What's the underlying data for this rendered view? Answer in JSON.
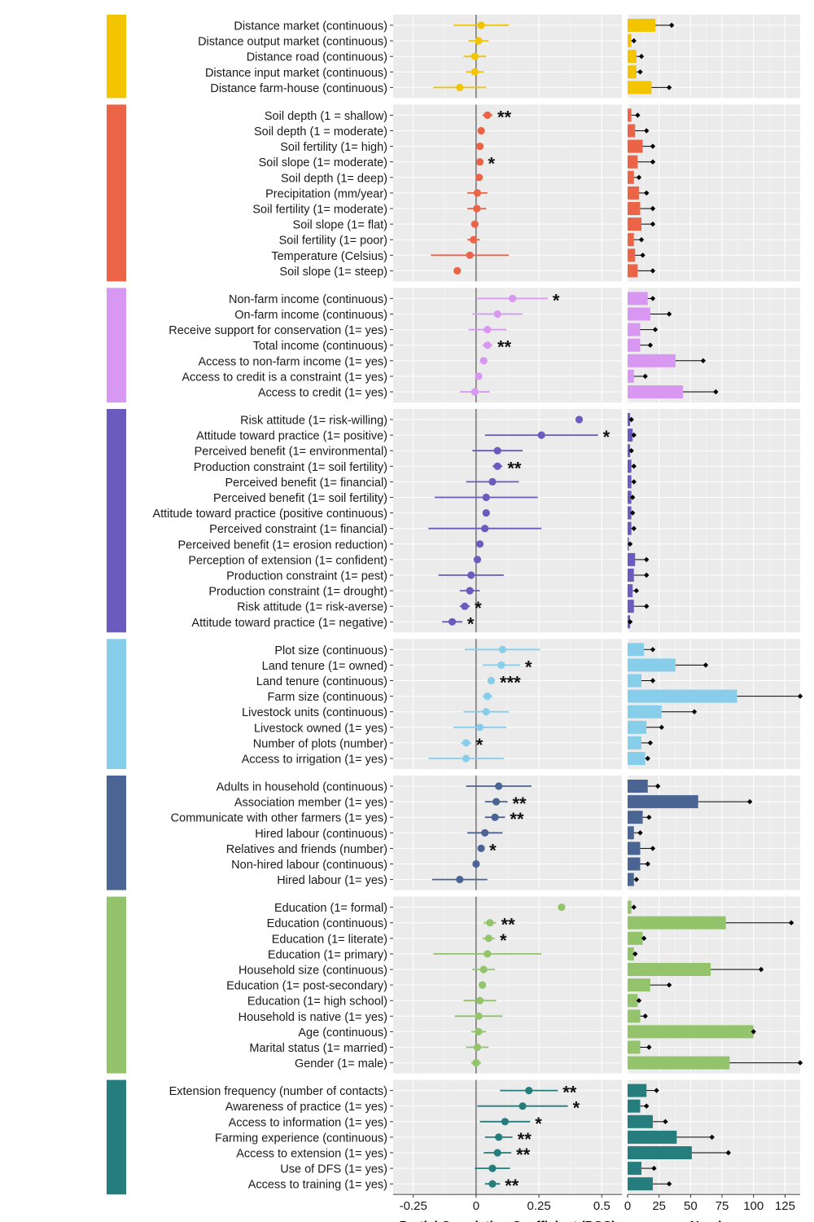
{
  "chart_data": {
    "type": "forest-and-bar",
    "left_panel": {
      "xlabel": "Partial Correlation Coefficient (PCC)",
      "xlim": [
        -0.33,
        0.58
      ],
      "ticks": [
        -0.25,
        0,
        0.25,
        0.5
      ],
      "tick_labels": [
        "-0.25",
        "0",
        "0.25",
        "0.5"
      ]
    },
    "right_panel": {
      "xlabel": "Number",
      "xlim": [
        0,
        137
      ],
      "ticks": [
        0,
        25,
        50,
        75,
        100,
        125
      ],
      "tick_labels": [
        "0",
        "25",
        "50",
        "75",
        "100",
        "125"
      ]
    },
    "groups": [
      {
        "color": "#F2C500",
        "items": [
          {
            "label": "Distance market (continuous)",
            "pcc": 0.02,
            "lo": -0.09,
            "hi": 0.13,
            "sig": "",
            "n": 22,
            "n_max": 35
          },
          {
            "label": "Distance output market (continuous)",
            "pcc": 0.01,
            "lo": -0.03,
            "hi": 0.05,
            "sig": "",
            "n": 3,
            "n_max": 5
          },
          {
            "label": "Distance road (continuous)",
            "pcc": -0.005,
            "lo": -0.05,
            "hi": 0.04,
            "sig": "",
            "n": 7,
            "n_max": 11
          },
          {
            "label": "Distance input market (continuous)",
            "pcc": -0.005,
            "lo": -0.04,
            "hi": 0.03,
            "sig": "",
            "n": 7,
            "n_max": 10
          },
          {
            "label": "Distance farm-house (continuous)",
            "pcc": -0.065,
            "lo": -0.17,
            "hi": 0.04,
            "sig": "",
            "n": 19,
            "n_max": 33
          }
        ]
      },
      {
        "color": "#EB6447",
        "items": [
          {
            "label": "Soil depth (1 = shallow)",
            "pcc": 0.045,
            "lo": 0.025,
            "hi": 0.065,
            "sig": "**",
            "n": 3,
            "n_max": 8
          },
          {
            "label": "Soil depth (1 = moderate)",
            "pcc": 0.02,
            "lo": 0.005,
            "hi": 0.035,
            "sig": "",
            "n": 6,
            "n_max": 15
          },
          {
            "label": "Soil fertility (1= high)",
            "pcc": 0.015,
            "lo": 0.0,
            "hi": 0.03,
            "sig": "",
            "n": 12,
            "n_max": 20
          },
          {
            "label": "Soil slope (1= moderate)",
            "pcc": 0.015,
            "lo": 0.005,
            "hi": 0.025,
            "sig": "*",
            "n": 8,
            "n_max": 20
          },
          {
            "label": "Soil depth (1= deep)",
            "pcc": 0.012,
            "lo": 0.0,
            "hi": 0.025,
            "sig": "",
            "n": 5,
            "n_max": 9
          },
          {
            "label": "Precipitation (mm/year)",
            "pcc": 0.005,
            "lo": -0.035,
            "hi": 0.045,
            "sig": "",
            "n": 9,
            "n_max": 15
          },
          {
            "label": "Soil fertility (1= moderate)",
            "pcc": 0.003,
            "lo": -0.035,
            "hi": 0.04,
            "sig": "",
            "n": 10,
            "n_max": 20
          },
          {
            "label": "Soil slope (1= flat)",
            "pcc": -0.005,
            "lo": -0.02,
            "hi": 0.01,
            "sig": "",
            "n": 11,
            "n_max": 20
          },
          {
            "label": "Soil fertility (1= poor)",
            "pcc": -0.01,
            "lo": -0.035,
            "hi": 0.015,
            "sig": "",
            "n": 5,
            "n_max": 11
          },
          {
            "label": "Temperature (Celsius)",
            "pcc": -0.025,
            "lo": -0.18,
            "hi": 0.13,
            "sig": "",
            "n": 6,
            "n_max": 12
          },
          {
            "label": "Soil slope (1= steep)",
            "pcc": -0.075,
            "lo": -0.085,
            "hi": -0.065,
            "sig": "",
            "n": 8,
            "n_max": 20
          }
        ]
      },
      {
        "color": "#D898F2",
        "items": [
          {
            "label": "Non-farm income (continuous)",
            "pcc": 0.145,
            "lo": 0.005,
            "hi": 0.285,
            "sig": "*",
            "n": 16,
            "n_max": 20
          },
          {
            "label": "On-farm income (continuous)",
            "pcc": 0.085,
            "lo": -0.015,
            "hi": 0.185,
            "sig": "",
            "n": 18,
            "n_max": 33
          },
          {
            "label": "Receive support for conservation (1= yes)",
            "pcc": 0.045,
            "lo": -0.03,
            "hi": 0.12,
            "sig": "",
            "n": 10,
            "n_max": 22
          },
          {
            "label": "Total income (continuous)",
            "pcc": 0.045,
            "lo": 0.025,
            "hi": 0.065,
            "sig": "**",
            "n": 10,
            "n_max": 18
          },
          {
            "label": "Access to non-farm income (1= yes)",
            "pcc": 0.03,
            "lo": 0.015,
            "hi": 0.045,
            "sig": "",
            "n": 38,
            "n_max": 60
          },
          {
            "label": "Access to credit is a constraint (1= yes)",
            "pcc": 0.01,
            "lo": 0.0,
            "hi": 0.02,
            "sig": "",
            "n": 5,
            "n_max": 14
          },
          {
            "label": "Access to credit (1= yes)",
            "pcc": -0.005,
            "lo": -0.065,
            "hi": 0.055,
            "sig": "",
            "n": 44,
            "n_max": 70
          }
        ]
      },
      {
        "color": "#6B5BBF",
        "items": [
          {
            "label": "Risk attitude (1= risk-willing)",
            "pcc": 0.41,
            "lo": 0.41,
            "hi": 0.41,
            "sig": "",
            "n": 2,
            "n_max": 3
          },
          {
            "label": "Attitude toward practice (1= positive)",
            "pcc": 0.26,
            "lo": 0.035,
            "hi": 0.485,
            "sig": "*",
            "n": 4,
            "n_max": 5
          },
          {
            "label": "Perceived benefit (1= environmental)",
            "pcc": 0.085,
            "lo": -0.015,
            "hi": 0.185,
            "sig": "",
            "n": 2,
            "n_max": 3
          },
          {
            "label": "Production constraint (1= soil fertility)",
            "pcc": 0.085,
            "lo": 0.065,
            "hi": 0.105,
            "sig": "**",
            "n": 3,
            "n_max": 5
          },
          {
            "label": "Perceived benefit (1= financial)",
            "pcc": 0.065,
            "lo": -0.04,
            "hi": 0.17,
            "sig": "",
            "n": 3,
            "n_max": 5
          },
          {
            "label": "Perceived benefit (1= soil fertility)",
            "pcc": 0.04,
            "lo": -0.165,
            "hi": 0.245,
            "sig": "",
            "n": 3,
            "n_max": 4
          },
          {
            "label": "Attitude toward practice (positive continuous)",
            "pcc": 0.04,
            "lo": 0.04,
            "hi": 0.04,
            "sig": "",
            "n": 3,
            "n_max": 4
          },
          {
            "label": "Perceived constraint (1= financial)",
            "pcc": 0.035,
            "lo": -0.19,
            "hi": 0.26,
            "sig": "",
            "n": 3,
            "n_max": 5
          },
          {
            "label": "Perceived benefit (1= erosion reduction)",
            "pcc": 0.015,
            "lo": 0.015,
            "hi": 0.015,
            "sig": "",
            "n": 1,
            "n_max": 2
          },
          {
            "label": "Perception of extension (1= confident)",
            "pcc": 0.005,
            "lo": -0.01,
            "hi": 0.02,
            "sig": "",
            "n": 6,
            "n_max": 15
          },
          {
            "label": "Production constraint (1= pest)",
            "pcc": -0.02,
            "lo": -0.15,
            "hi": 0.11,
            "sig": "",
            "n": 5,
            "n_max": 15
          },
          {
            "label": "Production constraint (1= drought)",
            "pcc": -0.025,
            "lo": -0.065,
            "hi": 0.015,
            "sig": "",
            "n": 4,
            "n_max": 7
          },
          {
            "label": "Risk attitude (1= risk-averse)",
            "pcc": -0.045,
            "lo": -0.065,
            "hi": -0.025,
            "sig": "*",
            "n": 5,
            "n_max": 15
          },
          {
            "label": "Attitude toward practice (1= negative)",
            "pcc": -0.095,
            "lo": -0.135,
            "hi": -0.055,
            "sig": "*",
            "n": 2,
            "n_max": 2
          }
        ]
      },
      {
        "color": "#87CEEB",
        "items": [
          {
            "label": "Plot size (continuous)",
            "pcc": 0.105,
            "lo": -0.045,
            "hi": 0.255,
            "sig": "",
            "n": 13,
            "n_max": 20
          },
          {
            "label": "Land tenure (1= owned)",
            "pcc": 0.1,
            "lo": 0.025,
            "hi": 0.175,
            "sig": "*",
            "n": 38,
            "n_max": 62
          },
          {
            "label": "Land tenure (continuous)",
            "pcc": 0.06,
            "lo": 0.045,
            "hi": 0.075,
            "sig": "***",
            "n": 11,
            "n_max": 20
          },
          {
            "label": "Farm size (continuous)",
            "pcc": 0.045,
            "lo": 0.025,
            "hi": 0.065,
            "sig": "",
            "n": 87,
            "n_max": 137
          },
          {
            "label": "Livestock units (continuous)",
            "pcc": 0.04,
            "lo": -0.05,
            "hi": 0.13,
            "sig": "",
            "n": 27,
            "n_max": 53
          },
          {
            "label": "Livestock owned (1= yes)",
            "pcc": 0.015,
            "lo": -0.09,
            "hi": 0.12,
            "sig": "",
            "n": 15,
            "n_max": 27
          },
          {
            "label": "Number of plots (number)",
            "pcc": -0.04,
            "lo": -0.06,
            "hi": -0.02,
            "sig": "*",
            "n": 11,
            "n_max": 18
          },
          {
            "label": "Access to irrigation (1= yes)",
            "pcc": -0.04,
            "lo": -0.19,
            "hi": 0.11,
            "sig": "",
            "n": 14,
            "n_max": 16
          }
        ]
      },
      {
        "color": "#4A6494",
        "items": [
          {
            "label": "Adults in household (continuous)",
            "pcc": 0.09,
            "lo": -0.04,
            "hi": 0.22,
            "sig": "",
            "n": 16,
            "n_max": 24
          },
          {
            "label": "Association member (1= yes)",
            "pcc": 0.08,
            "lo": 0.035,
            "hi": 0.125,
            "sig": "**",
            "n": 56,
            "n_max": 97
          },
          {
            "label": "Communicate with other farmers (1= yes)",
            "pcc": 0.075,
            "lo": 0.035,
            "hi": 0.115,
            "sig": "**",
            "n": 12,
            "n_max": 17
          },
          {
            "label": "Hired labour (continuous)",
            "pcc": 0.035,
            "lo": -0.035,
            "hi": 0.105,
            "sig": "",
            "n": 5,
            "n_max": 10
          },
          {
            "label": "Relatives and friends (number)",
            "pcc": 0.02,
            "lo": 0.015,
            "hi": 0.025,
            "sig": "*",
            "n": 10,
            "n_max": 20
          },
          {
            "label": "Non-hired labour (continuous)",
            "pcc": 0.0,
            "lo": -0.01,
            "hi": 0.01,
            "sig": "",
            "n": 10,
            "n_max": 16
          },
          {
            "label": "Hired labour (1= yes)",
            "pcc": -0.065,
            "lo": -0.175,
            "hi": 0.045,
            "sig": "",
            "n": 5,
            "n_max": 7
          }
        ]
      },
      {
        "color": "#93C46C",
        "items": [
          {
            "label": "Education (1= formal)",
            "pcc": 0.34,
            "lo": 0.34,
            "hi": 0.34,
            "sig": "",
            "n": 3,
            "n_max": 5
          },
          {
            "label": "Education (continuous)",
            "pcc": 0.055,
            "lo": 0.03,
            "hi": 0.08,
            "sig": "**",
            "n": 78,
            "n_max": 130
          },
          {
            "label": "Education (1= literate)",
            "pcc": 0.05,
            "lo": 0.025,
            "hi": 0.075,
            "sig": "*",
            "n": 12,
            "n_max": 13
          },
          {
            "label": "Education (1= primary)",
            "pcc": 0.045,
            "lo": -0.17,
            "hi": 0.26,
            "sig": "",
            "n": 5,
            "n_max": 6
          },
          {
            "label": "Household size (continuous)",
            "pcc": 0.03,
            "lo": -0.015,
            "hi": 0.075,
            "sig": "",
            "n": 66,
            "n_max": 106
          },
          {
            "label": "Education (1= post-secondary)",
            "pcc": 0.025,
            "lo": 0.015,
            "hi": 0.035,
            "sig": "",
            "n": 18,
            "n_max": 33
          },
          {
            "label": "Education (1= high school)",
            "pcc": 0.015,
            "lo": -0.05,
            "hi": 0.08,
            "sig": "",
            "n": 8,
            "n_max": 9
          },
          {
            "label": "Household is native (1= yes)",
            "pcc": 0.01,
            "lo": -0.085,
            "hi": 0.105,
            "sig": "",
            "n": 10,
            "n_max": 14
          },
          {
            "label": "Age (continuous)",
            "pcc": 0.01,
            "lo": -0.02,
            "hi": 0.04,
            "sig": "",
            "n": 100,
            "n_max": 100
          },
          {
            "label": "Marital status (1= married)",
            "pcc": 0.005,
            "lo": -0.04,
            "hi": 0.05,
            "sig": "",
            "n": 10,
            "n_max": 17
          },
          {
            "label": "Gender (1= male)",
            "pcc": 0.0,
            "lo": -0.02,
            "hi": 0.02,
            "sig": "",
            "n": 81,
            "n_max": 137
          }
        ]
      },
      {
        "color": "#267D7D",
        "items": [
          {
            "label": "Extension frequency (number of contacts)",
            "pcc": 0.21,
            "lo": 0.095,
            "hi": 0.325,
            "sig": "**",
            "n": 15,
            "n_max": 23
          },
          {
            "label": "Awareness of practice (1= yes)",
            "pcc": 0.185,
            "lo": 0.005,
            "hi": 0.365,
            "sig": "*",
            "n": 10,
            "n_max": 15
          },
          {
            "label": "Access to information (1= yes)",
            "pcc": 0.115,
            "lo": 0.015,
            "hi": 0.215,
            "sig": "*",
            "n": 20,
            "n_max": 30
          },
          {
            "label": "Farming experience (continuous)",
            "pcc": 0.09,
            "lo": 0.035,
            "hi": 0.145,
            "sig": "**",
            "n": 39,
            "n_max": 67
          },
          {
            "label": "Access to extension (1= yes)",
            "pcc": 0.085,
            "lo": 0.03,
            "hi": 0.14,
            "sig": "**",
            "n": 51,
            "n_max": 80
          },
          {
            "label": "Use of DFS (1= yes)",
            "pcc": 0.065,
            "lo": -0.005,
            "hi": 0.135,
            "sig": "",
            "n": 11,
            "n_max": 21
          },
          {
            "label": "Access to training (1= yes)",
            "pcc": 0.065,
            "lo": 0.035,
            "hi": 0.095,
            "sig": "**",
            "n": 20,
            "n_max": 33
          }
        ]
      }
    ]
  }
}
